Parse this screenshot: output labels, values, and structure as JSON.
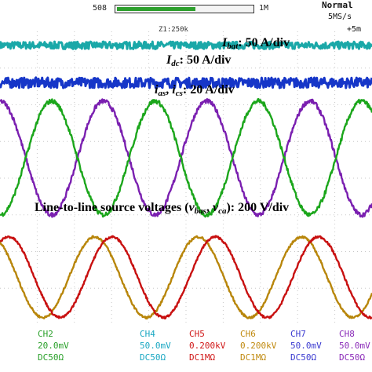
{
  "status_bar": {
    "record_length": "508",
    "memory_marker": "1M",
    "zoom": "Z1:250k",
    "mode": "Normal",
    "sample_rate": "5MS/s",
    "corner_value": "+5m"
  },
  "chart_data": {
    "type": "line",
    "title": "",
    "annotations": {
      "ibat": "I",
      "ibat_sub": "bat",
      "ibat_scale": ": 50 A/div",
      "idc": "I",
      "idc_sub": "dc",
      "idc_scale": ": 50 A/div",
      "ias": "i",
      "ias_sub": "as",
      "ias_sep": ", ",
      "ics": "i",
      "ics_sub": "cs",
      "ias_scale": ": 20 A/div",
      "vsrc_prefix": "Line-to-line source voltages (",
      "vbas": "v",
      "vbas_sub": "bas",
      "vsep": ", ",
      "vca": "v",
      "vca_sub": "ca",
      "vsrc_scale": "): 200 V/div"
    },
    "grid": true,
    "series": [
      {
        "name": "I_bat",
        "kind": "dc",
        "level_div": 3.62,
        "noise_div": 0.1,
        "color": "#1aa8a8"
      },
      {
        "name": "I_dc",
        "kind": "dc",
        "level_div": 2.6,
        "noise_div": 0.14,
        "color": "#1636c8"
      },
      {
        "name": "i_as",
        "kind": "sine",
        "offset_div": 0.55,
        "amplitude_div": 1.55,
        "periods_on_screen": 3.6,
        "phase_deg": 90,
        "noise_div": 0.06,
        "color": "#7a1fb0"
      },
      {
        "name": "i_cs",
        "kind": "sine",
        "offset_div": 0.55,
        "amplitude_div": 1.55,
        "periods_on_screen": 3.6,
        "phase_deg": 270,
        "noise_div": 0.06,
        "color": "#1ba61b"
      },
      {
        "name": "v_bas",
        "kind": "sine",
        "offset_div": -2.7,
        "amplitude_div": 1.1,
        "periods_on_screen": 3.6,
        "phase_deg": 120,
        "noise_div": 0.03,
        "color": "#b8860b"
      },
      {
        "name": "v_ca",
        "kind": "sine",
        "offset_div": -2.7,
        "amplitude_div": 1.1,
        "periods_on_screen": 3.6,
        "phase_deg": 60,
        "noise_div": 0.03,
        "color": "#c81010"
      }
    ]
  },
  "channels": [
    {
      "name": "CH2",
      "scale": "20.0mV",
      "coupling": "DC50Ω",
      "color": "#2aa02a"
    },
    {
      "name": "CH4",
      "scale": "50.0mV",
      "coupling": "DC50Ω",
      "color": "#19a7c2"
    },
    {
      "name": "CH5",
      "scale": "0.200kV",
      "coupling": "DC1MΩ",
      "color": "#d01818"
    },
    {
      "name": "CH6",
      "scale": "0.200kV",
      "coupling": "DC1MΩ",
      "color": "#c08a10"
    },
    {
      "name": "CH7",
      "scale": "50.0mV",
      "coupling": "DC50Ω",
      "color": "#3a3ad0"
    },
    {
      "name": "CH8",
      "scale": "50.0mV",
      "coupling": "DC50Ω",
      "color": "#8a2ab8"
    }
  ]
}
